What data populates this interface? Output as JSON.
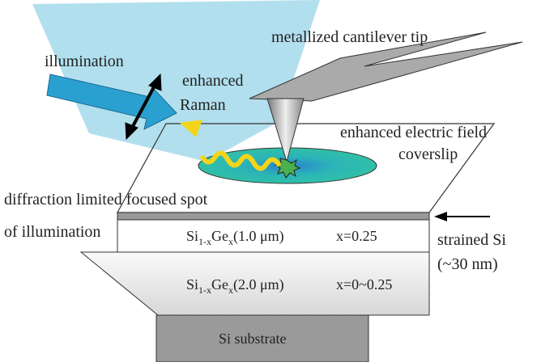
{
  "labels": {
    "tip": "metallized cantilever tip",
    "illumination": "illumination",
    "raman": [
      "enhanced",
      "Raman"
    ],
    "field": "enhanced electric field",
    "coverslip": "coverslip",
    "spot": [
      "diffraction limited focused spot",
      "of illumination"
    ],
    "strained": [
      "strained Si",
      "(~30 nm)"
    ]
  },
  "layers": [
    {
      "parts": [
        "Si",
        "1-x",
        "Ge",
        "x",
        "(1.0 μm)"
      ],
      "composition": "x=0.25"
    },
    {
      "parts": [
        "Si",
        "1-x",
        "Ge",
        "x",
        "(2.0 μm)"
      ],
      "composition": "x=0~0.25"
    },
    {
      "name": "Si substrate"
    }
  ]
}
